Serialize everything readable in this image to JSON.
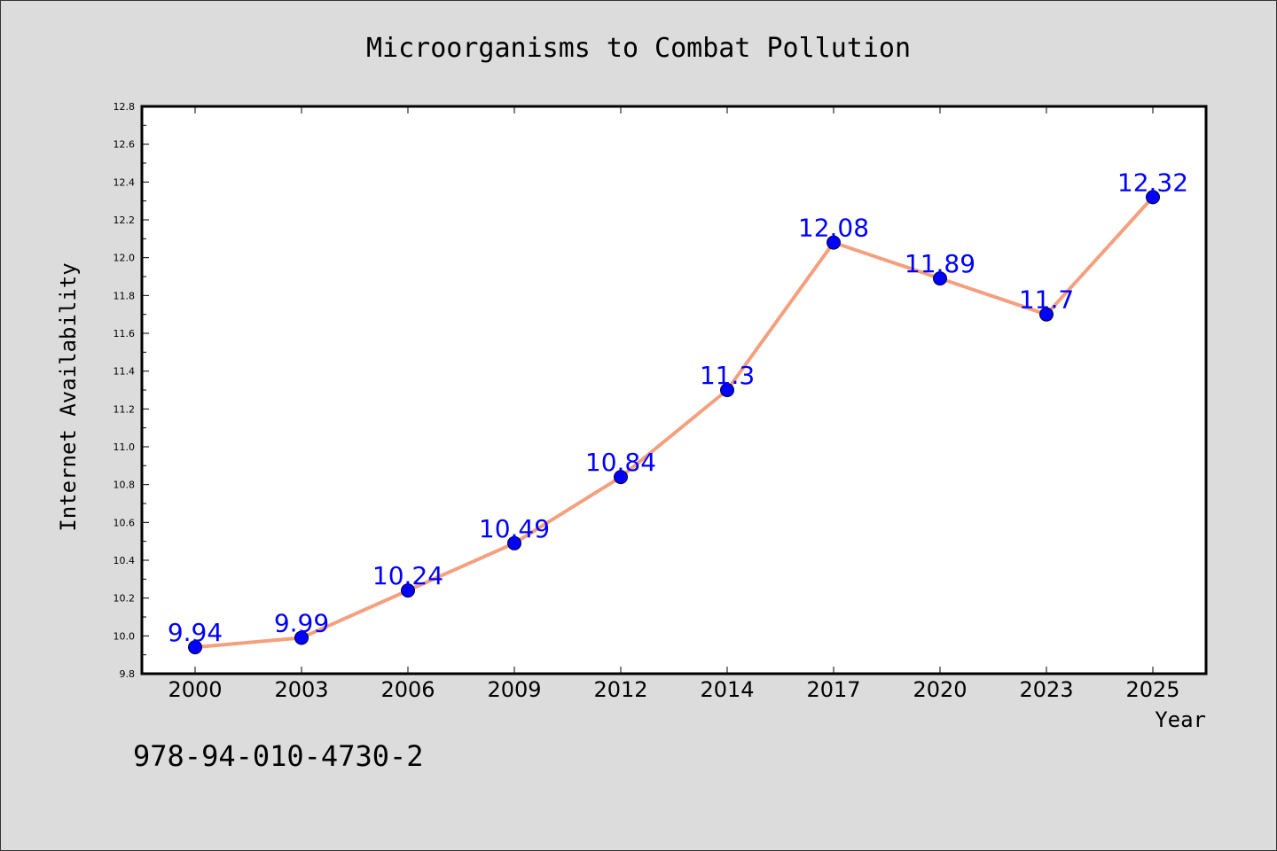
{
  "chart_data": {
    "type": "line",
    "title": "Microorganisms to Combat Pollution",
    "xlabel": "Year",
    "ylabel": "Internet Availability",
    "categories": [
      "2000",
      "2003",
      "2006",
      "2009",
      "2012",
      "2014",
      "2017",
      "2020",
      "2023",
      "2025"
    ],
    "series": [
      {
        "values": [
          9.94,
          9.99,
          10.24,
          10.49,
          10.84,
          11.3,
          12.08,
          11.89,
          11.7,
          12.32
        ]
      }
    ],
    "data_labels": [
      "9.94",
      "9.99",
      "10.24",
      "10.49",
      "10.84",
      "11.3",
      "12.08",
      "11.89",
      "11.7",
      "12.32"
    ],
    "ylim": [
      9.8,
      12.8
    ],
    "ytick_step": 0.2,
    "yminor_step": 0.1,
    "grid": false,
    "colors": {
      "line": "#f4a07f",
      "marker": "#0000ff",
      "label": "#0000ff",
      "background": "#dcdcdc",
      "plot_area": "#ffffff"
    }
  },
  "footer": {
    "code": "978-94-010-4730-2"
  }
}
